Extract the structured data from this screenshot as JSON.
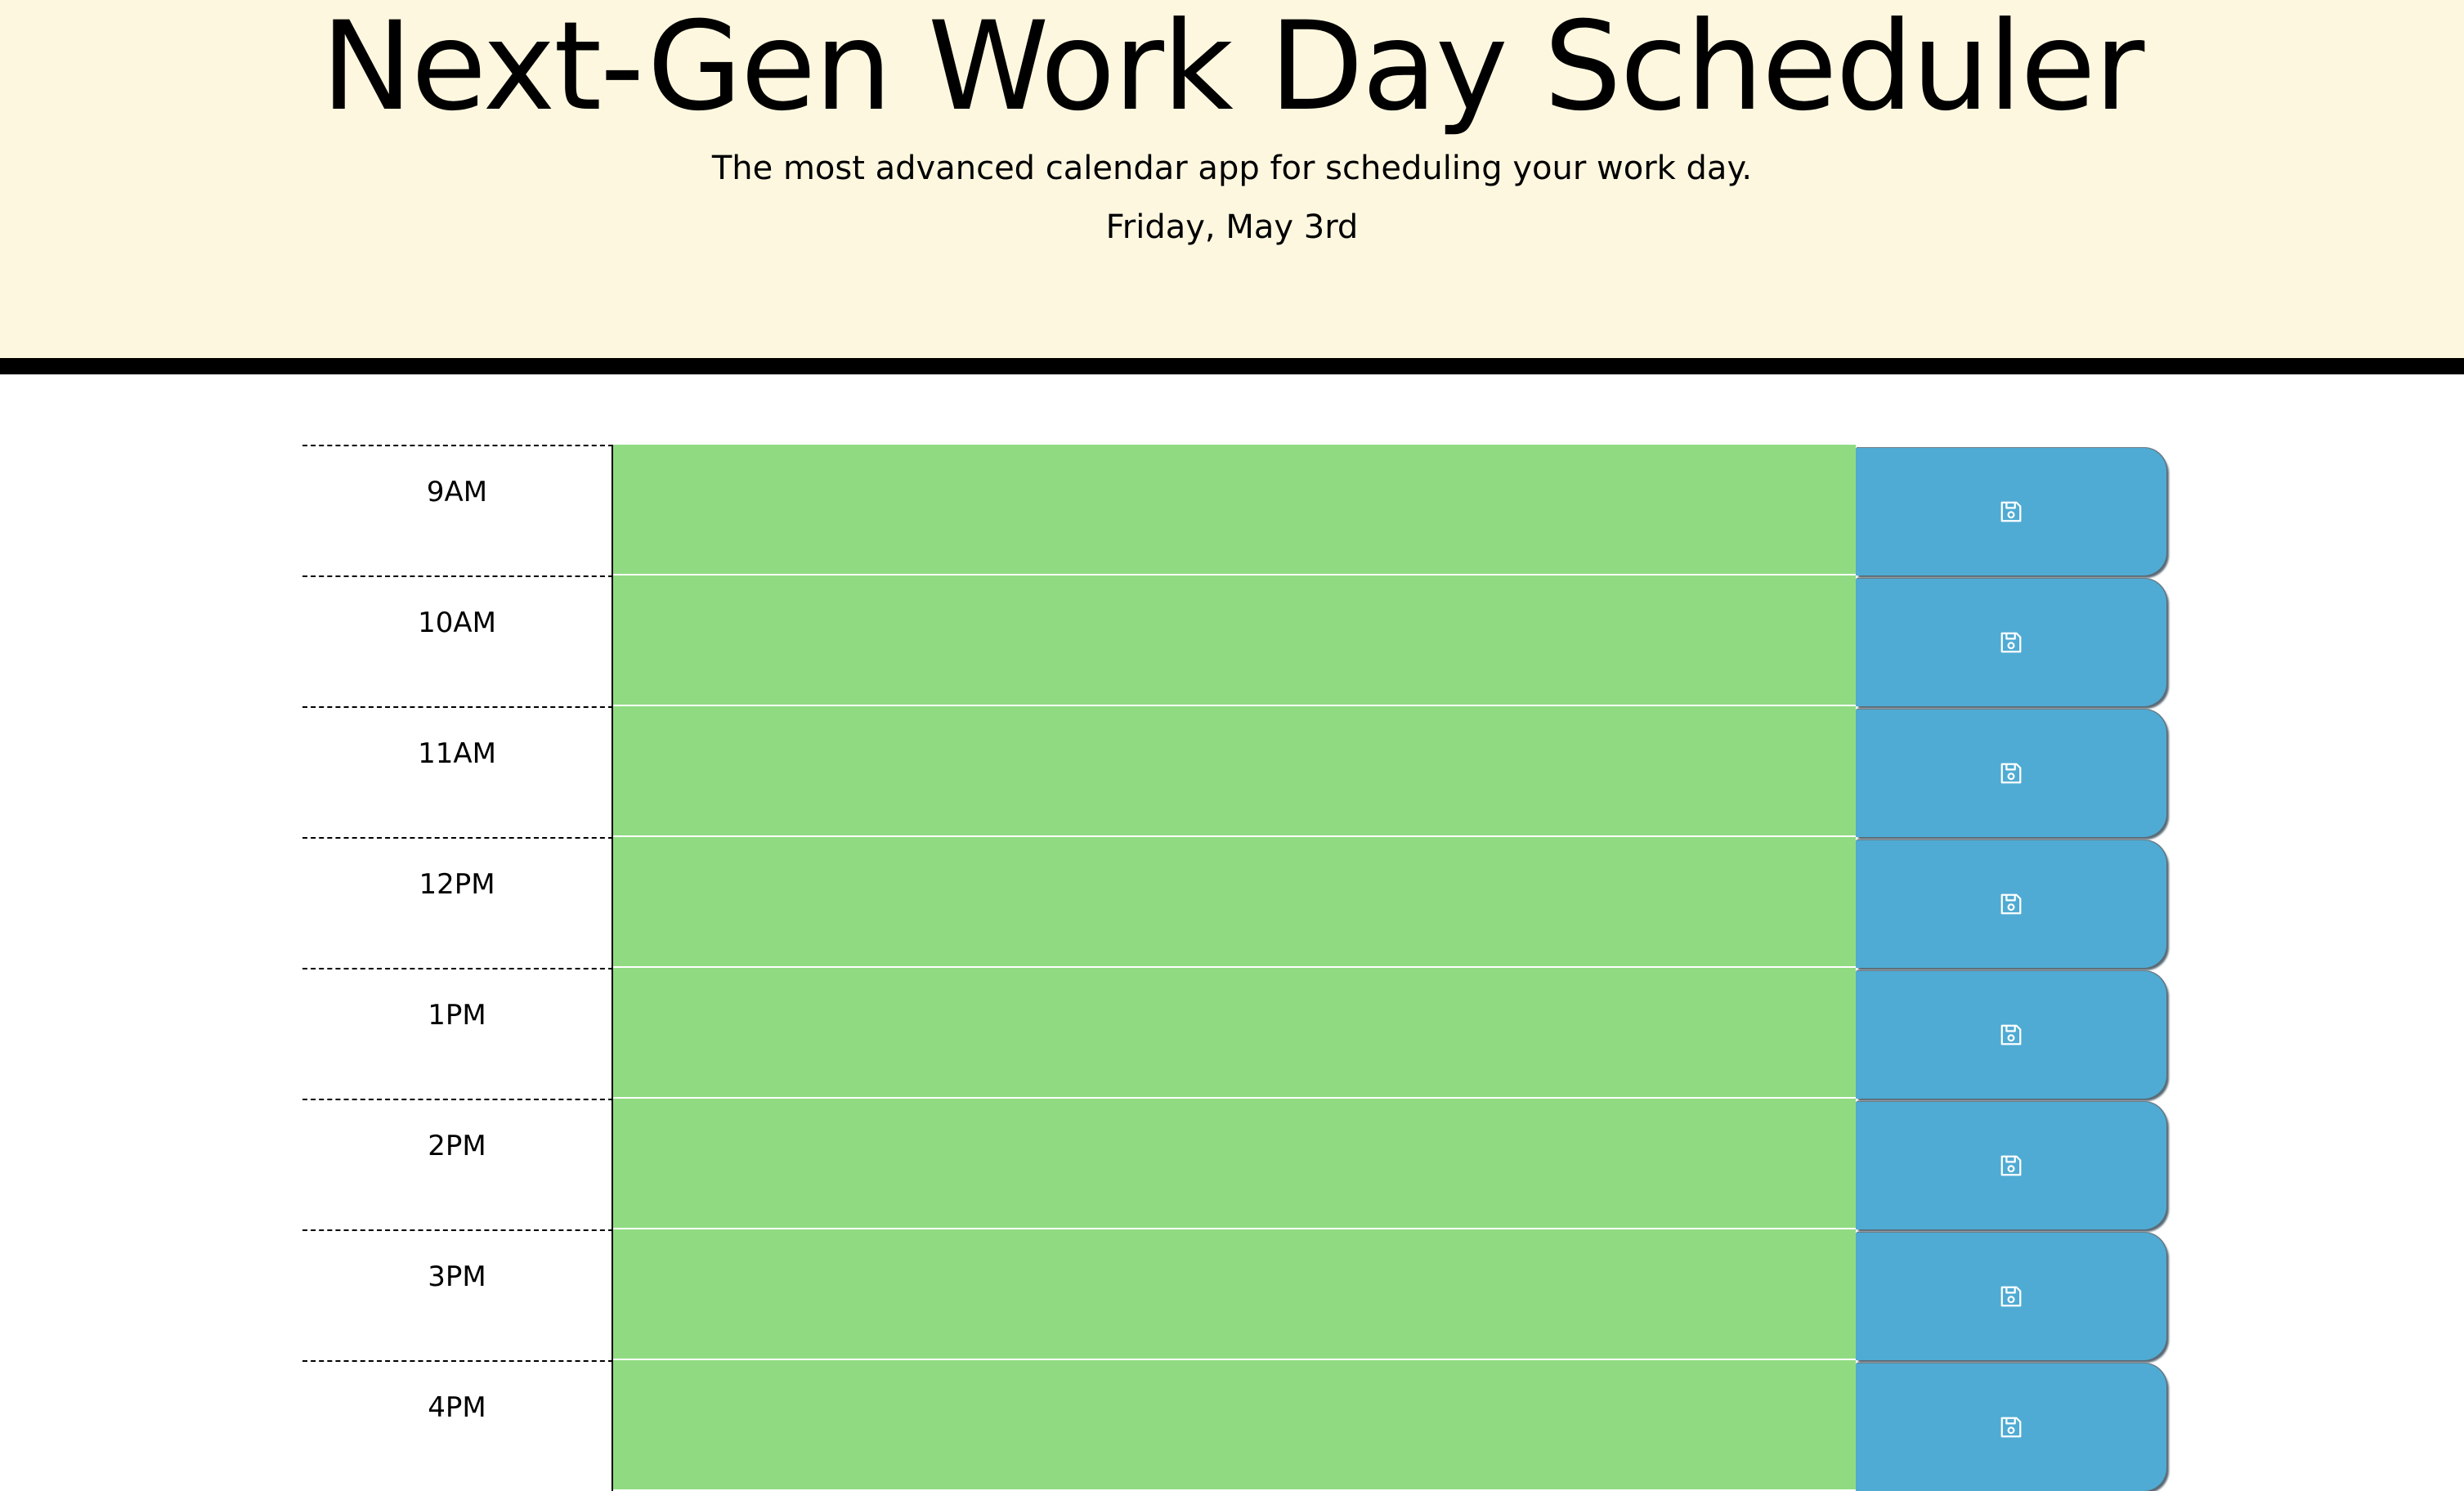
{
  "header": {
    "title": "Next-Gen Work Day Scheduler",
    "subtitle": "The most advanced calendar app for scheduling your work day.",
    "current_day": "Friday, May 3rd"
  },
  "colors": {
    "header_bg": "#fdf7df",
    "present_block": "#90db82",
    "save_button": "#4fabd3"
  },
  "save_icon": "floppy-disk-icon",
  "time_blocks": [
    {
      "hour": "9AM",
      "text": ""
    },
    {
      "hour": "10AM",
      "text": ""
    },
    {
      "hour": "11AM",
      "text": ""
    },
    {
      "hour": "12PM",
      "text": ""
    },
    {
      "hour": "1PM",
      "text": ""
    },
    {
      "hour": "2PM",
      "text": ""
    },
    {
      "hour": "3PM",
      "text": ""
    },
    {
      "hour": "4PM",
      "text": ""
    }
  ]
}
